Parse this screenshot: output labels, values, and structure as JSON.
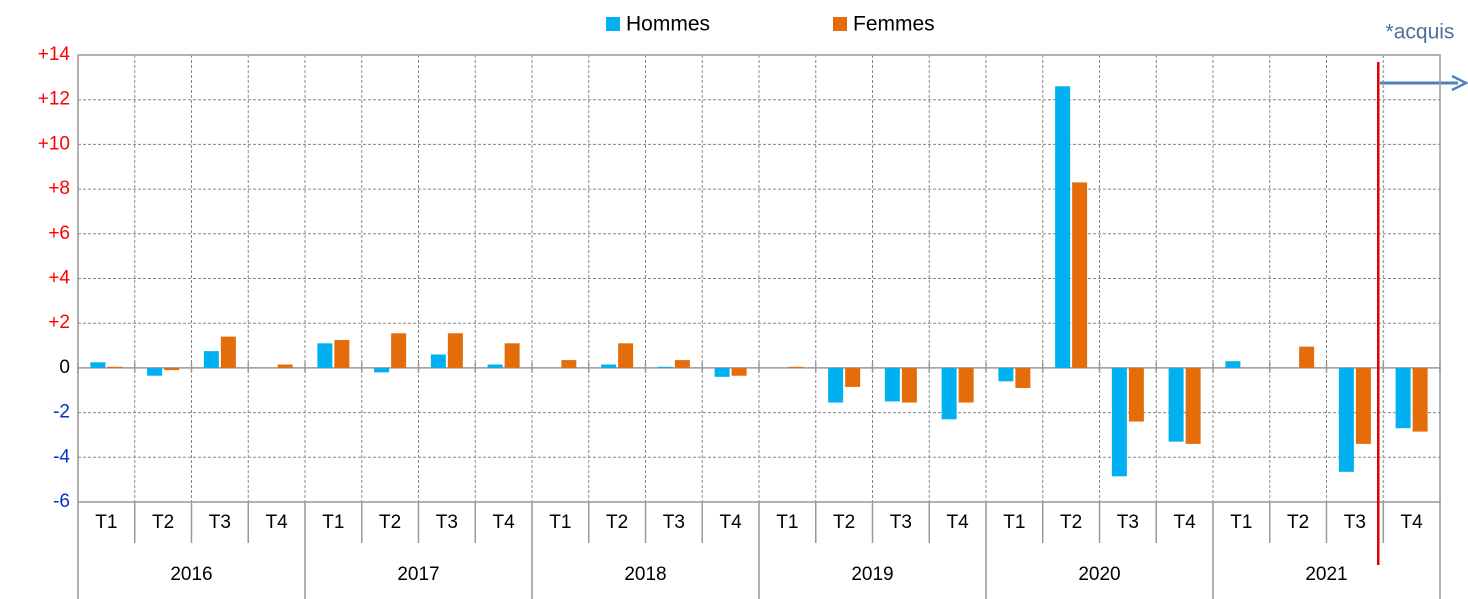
{
  "chart_data": {
    "type": "bar",
    "annotation": "*acquis",
    "categories": [
      "T1",
      "T2",
      "T3",
      "T4",
      "T1",
      "T2",
      "T3",
      "T4",
      "T1",
      "T2",
      "T3",
      "T4",
      "T1",
      "T2",
      "T3",
      "T4",
      "T1",
      "T2",
      "T3",
      "T4",
      "T1",
      "T2",
      "T3",
      "T4"
    ],
    "years": [
      "2016",
      "2017",
      "2018",
      "2019",
      "2020",
      "2021"
    ],
    "series": [
      {
        "name": "Hommes",
        "color": "#00b0f0",
        "values": [
          0.25,
          -0.35,
          0.75,
          0,
          1.1,
          -0.2,
          0.6,
          0.15,
          0,
          0.15,
          0.05,
          -0.4,
          0,
          -1.55,
          -1.5,
          -2.3,
          -0.6,
          12.6,
          -4.85,
          -3.3,
          0.3,
          0,
          -4.65,
          -2.7
        ]
      },
      {
        "name": "Femmes",
        "color": "#e46c0a",
        "values": [
          0.05,
          -0.1,
          1.4,
          0.15,
          1.25,
          1.55,
          1.55,
          1.1,
          0.35,
          1.1,
          0.35,
          -0.35,
          0.05,
          -0.85,
          -1.55,
          -1.55,
          -0.9,
          8.3,
          -2.4,
          -3.4,
          0,
          0.95,
          -3.4,
          -2.85
        ]
      }
    ],
    "ylim": [
      -6,
      14
    ],
    "yticks": [
      {
        "value": 14,
        "label": "+14"
      },
      {
        "value": 12,
        "label": "+12"
      },
      {
        "value": 10,
        "label": "+10"
      },
      {
        "value": 8,
        "label": "+8"
      },
      {
        "value": 6,
        "label": "+6"
      },
      {
        "value": 4,
        "label": "+4"
      },
      {
        "value": 2,
        "label": "+2"
      },
      0,
      -2,
      -4,
      -6
    ],
    "grid": true
  }
}
